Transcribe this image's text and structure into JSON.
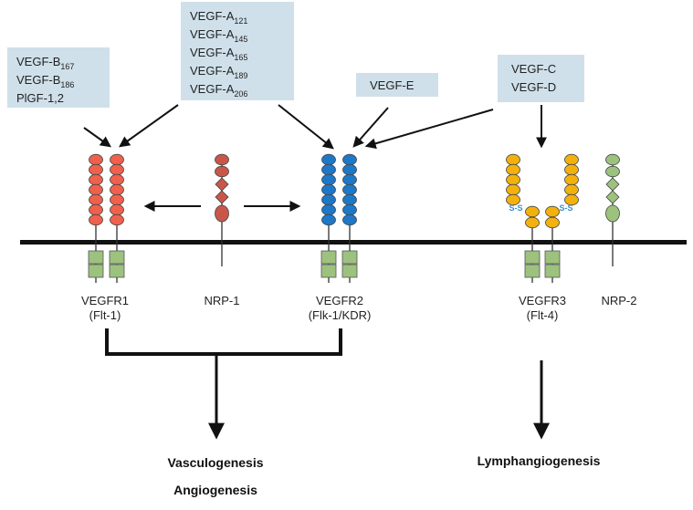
{
  "ligands": {
    "box1": [
      {
        "base": "VEGF-B",
        "sub": "167"
      },
      {
        "base": "VEGF-B",
        "sub": "186"
      },
      {
        "base": "PlGF-1,2",
        "sub": ""
      }
    ],
    "box2": [
      {
        "base": "VEGF-A",
        "sub": "121"
      },
      {
        "base": "VEGF-A",
        "sub": "145"
      },
      {
        "base": "VEGF-A",
        "sub": "165"
      },
      {
        "base": "VEGF-A",
        "sub": "189"
      },
      {
        "base": "VEGF-A",
        "sub": "206"
      }
    ],
    "box3": "VEGF-E",
    "box4": [
      "VEGF-C",
      "VEGF-D"
    ]
  },
  "receptors": {
    "vegfr1": {
      "name": "VEGFR1",
      "alias": "(Flt-1)"
    },
    "nrp1": {
      "name": "NRP-1"
    },
    "vegfr2": {
      "name": "VEGFR2",
      "alias": "(Flk-1/KDR)"
    },
    "vegfr3": {
      "name": "VEGFR3",
      "alias": "(Flt-4)"
    },
    "nrp2": {
      "name": "NRP-2"
    },
    "disulfide": "S-S"
  },
  "outcomes": {
    "left": [
      "Vasculogenesis",
      "Angiogenesis"
    ],
    "right": "Lymphangiogenesis"
  },
  "colors": {
    "vegfr1": "#f0604c",
    "nrp1": "#c8574a",
    "vegfr2": "#1e78c8",
    "vegfr3": "#f2b10c",
    "nrp2": "#9cc27e",
    "kinase": "#9cc27e",
    "box": "#cfe0ea"
  }
}
